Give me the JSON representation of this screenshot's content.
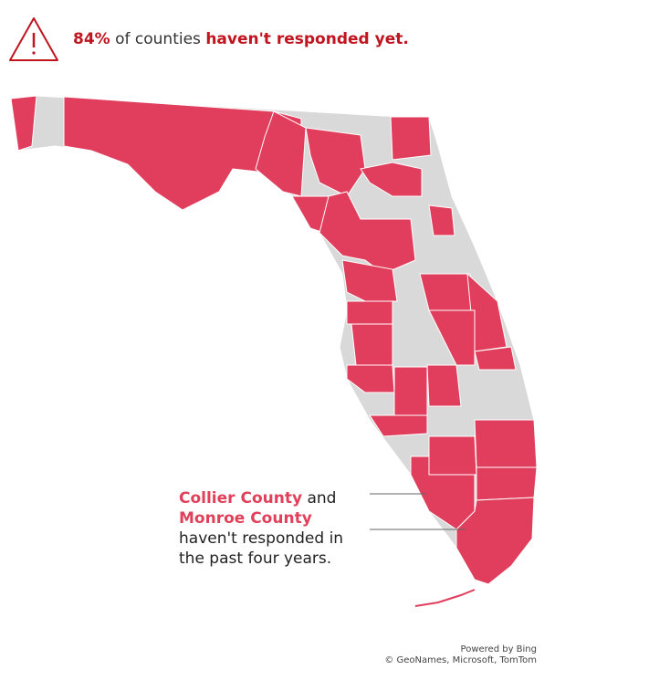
{
  "header": {
    "percent": "84%",
    "middle": "of counties",
    "emphasis": "haven't responded yet."
  },
  "annotation": {
    "county_1": "Collier County",
    "joiner": "and",
    "county_2": "Monroe County",
    "line_1": "haven't responded in",
    "line_2": "the past four years."
  },
  "attribution": {
    "line_1": "Powered by Bing",
    "line_2": "© GeoNames, Microsoft, TomTom"
  }
}
